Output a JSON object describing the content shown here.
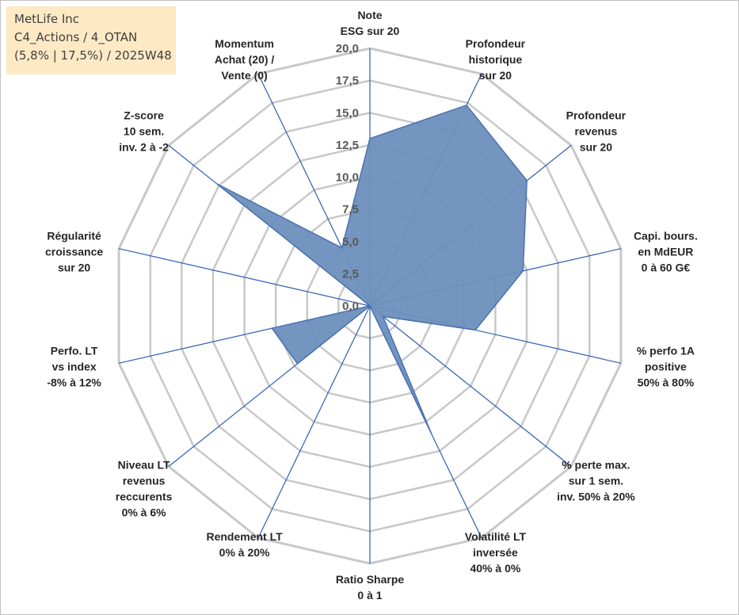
{
  "info_box": {
    "line1": "MetLife Inc",
    "line2": "C4_Actions / 4_OTAN",
    "line3": "(5,8% | 17,5%) / 2025W48"
  },
  "colors": {
    "grid": "#c8c8c8",
    "spoke": "#2f5fb3",
    "fill": "#6d8fbc",
    "outline": "#4a72b0",
    "info_box_bg": "#fde9c4"
  },
  "chart_data": {
    "type": "radar",
    "rmax": 20,
    "tick_step": 2.5,
    "tick_labels": [
      "0,0",
      "2,5",
      "5,0",
      "7,5",
      "10,0",
      "12,5",
      "15,0",
      "17,5",
      "20,0"
    ],
    "axes": [
      {
        "lines": [
          "Note",
          "ESG sur 20"
        ]
      },
      {
        "lines": [
          "Profondeur",
          "historique",
          "sur 20"
        ]
      },
      {
        "lines": [
          "Profondeur",
          "revenus",
          "sur 20"
        ]
      },
      {
        "lines": [
          "Capi. bours.",
          "en MdEUR",
          "0 à 60 G€"
        ]
      },
      {
        "lines": [
          "% perfo 1A",
          "positive",
          "50% à 80%"
        ]
      },
      {
        "lines": [
          "% perte max.",
          "sur 1 sem.",
          "inv. 50% à 20%"
        ]
      },
      {
        "lines": [
          "Volatilité LT",
          "inversée",
          "40% à 0%"
        ]
      },
      {
        "lines": [
          "Ratio Sharpe",
          "0 à 1"
        ]
      },
      {
        "lines": [
          "Rendement LT",
          "0% à 20%"
        ]
      },
      {
        "lines": [
          "Niveau LT",
          "revenus",
          "reccurents",
          "0% à 6%"
        ]
      },
      {
        "lines": [
          "Perfo. LT",
          "vs index",
          "-8% à 12%"
        ]
      },
      {
        "lines": [
          "Régularité",
          "croissance",
          "sur 20"
        ]
      },
      {
        "lines": [
          "Z-score",
          "10 sem.",
          "inv. 2 à -2"
        ]
      },
      {
        "lines": [
          "Momentum",
          "Achat (20) /",
          "Vente (0)"
        ]
      }
    ],
    "values": [
      13.0,
      17.3,
      15.6,
      12.2,
      8.4,
      1.3,
      11.0,
      0.0,
      0.0,
      7.2,
      7.8,
      0.0,
      15.2,
      5.0
    ]
  }
}
